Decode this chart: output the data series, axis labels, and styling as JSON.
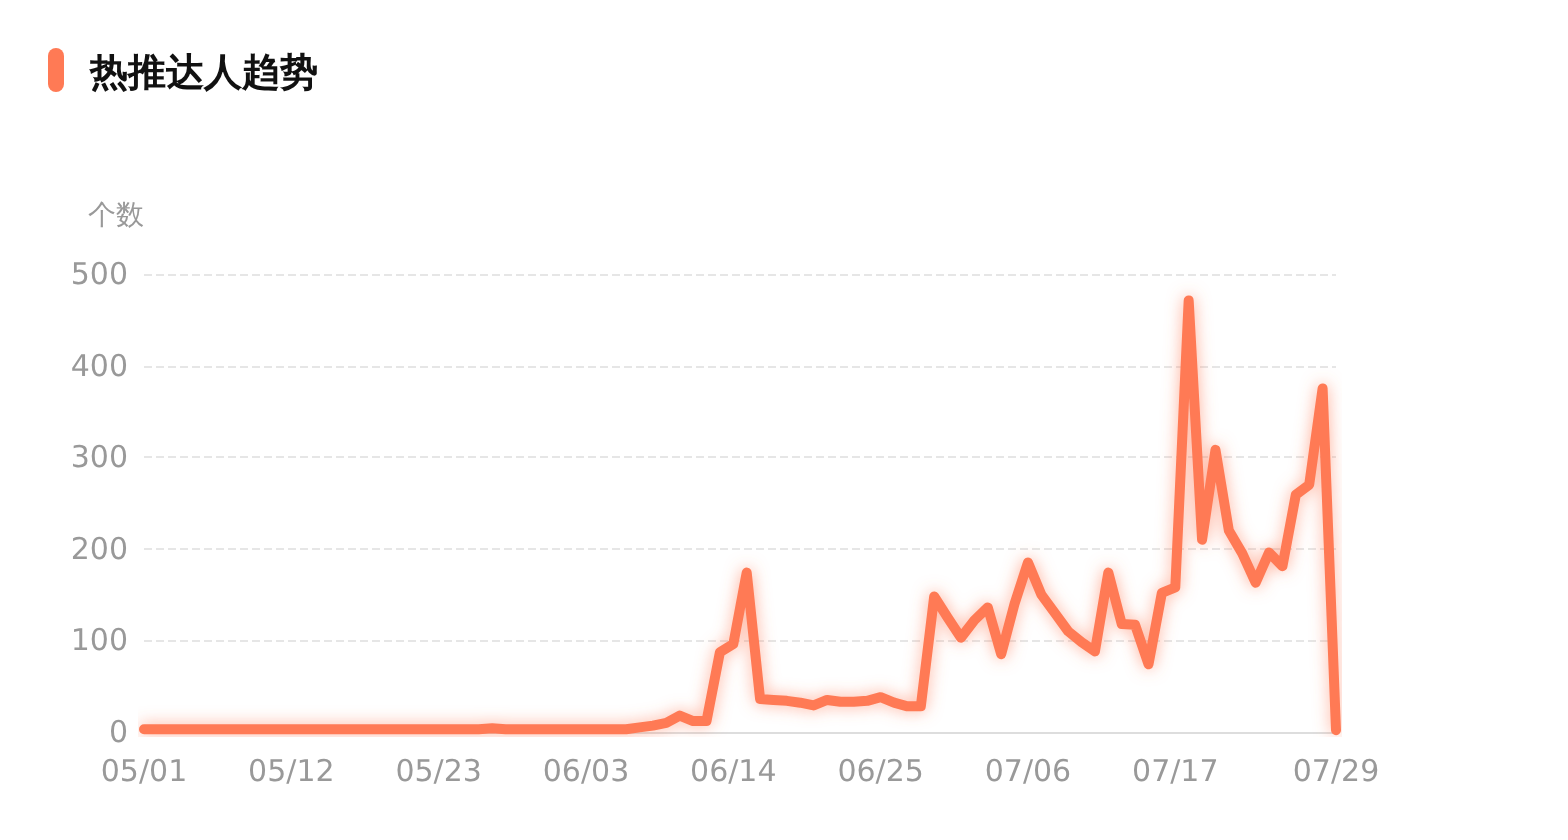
{
  "chart_data": {
    "type": "line",
    "title": "热推达人趋势",
    "ylabel": "个数",
    "categories": [
      "05/01",
      null,
      null,
      null,
      null,
      null,
      null,
      null,
      null,
      null,
      null,
      "05/12",
      null,
      null,
      null,
      null,
      null,
      null,
      null,
      null,
      null,
      null,
      "05/23",
      null,
      null,
      null,
      null,
      null,
      null,
      null,
      null,
      null,
      null,
      "06/03",
      null,
      null,
      null,
      null,
      null,
      null,
      null,
      null,
      null,
      null,
      "06/14",
      null,
      null,
      null,
      null,
      null,
      null,
      null,
      null,
      null,
      null,
      "06/25",
      null,
      null,
      null,
      null,
      null,
      null,
      null,
      null,
      null,
      null,
      "07/06",
      null,
      null,
      null,
      null,
      null,
      null,
      null,
      null,
      null,
      null,
      "07/17",
      null,
      null,
      null,
      null,
      null,
      null,
      null,
      null,
      null,
      null,
      null,
      "07/29"
    ],
    "series": [
      {
        "color": "#ff7a55",
        "values": [
          3,
          3,
          3,
          3,
          3,
          3,
          3,
          3,
          3,
          3,
          3,
          3,
          3,
          3,
          3,
          3,
          3,
          3,
          3,
          3,
          3,
          3,
          3,
          3,
          3,
          3,
          4,
          3,
          3,
          3,
          3,
          3,
          3,
          3,
          3,
          3,
          3,
          5,
          7,
          10,
          18,
          12,
          12,
          87,
          96,
          174,
          36,
          35,
          34,
          32,
          29,
          35,
          33,
          33,
          34,
          38,
          32,
          28,
          28,
          148,
          125,
          103,
          122,
          136,
          85,
          140,
          185,
          150,
          130,
          110,
          98,
          88,
          174,
          118,
          117,
          74,
          152,
          158,
          471,
          210,
          308,
          220,
          195,
          163,
          196,
          181,
          259,
          270,
          375,
          2
        ]
      }
    ],
    "ylim": [
      0,
      500
    ],
    "yticks": [
      0,
      100,
      200,
      300,
      400,
      500
    ],
    "grid": "y",
    "marker": "none",
    "line_style": "solid"
  }
}
